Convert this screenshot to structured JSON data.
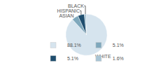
{
  "chart_data": {
    "type": "pie",
    "categories": [
      "WHITE",
      "ASIAN",
      "HISPANIC",
      "BLACK"
    ],
    "values": [
      88.1,
      5.1,
      5.1,
      1.6
    ],
    "value_labels": [
      "88.1%",
      "5.1%",
      "5.1%",
      "1.6%"
    ],
    "colors": [
      "#d6e4ee",
      "#7fa8bc",
      "#1f4e6e",
      "#a8c4d4"
    ],
    "legend": "bottom"
  }
}
